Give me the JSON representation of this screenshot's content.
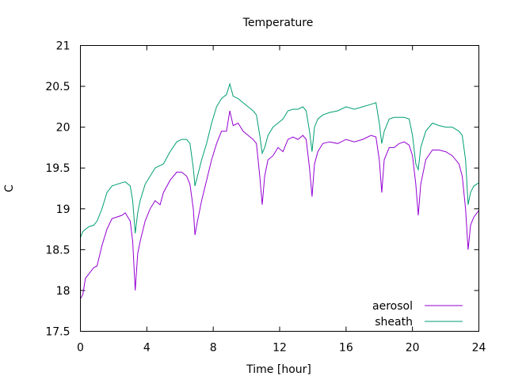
{
  "chart_data": {
    "type": "line",
    "title": "Temperature",
    "xlabel": "Time [hour]",
    "ylabel": "C",
    "xlim": [
      0,
      24
    ],
    "ylim": [
      17.5,
      21
    ],
    "xticks": [
      0,
      4,
      8,
      12,
      16,
      20,
      24
    ],
    "yticks": [
      17.5,
      18,
      18.5,
      19,
      19.5,
      20,
      20.5,
      21
    ],
    "xtick_labels": [
      "0",
      "4",
      "8",
      "12",
      "16",
      "20",
      "24"
    ],
    "ytick_labels": [
      "17.5",
      "18",
      "18.5",
      "19",
      "19.5",
      "20",
      "20.5",
      "21"
    ],
    "grid": false,
    "legend": "bottom-right",
    "series": [
      {
        "name": "aerosol",
        "color": "#9400d3",
        "x": [
          0,
          0.15,
          0.3,
          0.5,
          0.8,
          1.0,
          1.3,
          1.6,
          1.9,
          2.2,
          2.5,
          2.7,
          3.0,
          3.15,
          3.3,
          3.45,
          3.6,
          3.9,
          4.2,
          4.5,
          4.8,
          5.0,
          5.4,
          5.8,
          6.1,
          6.4,
          6.6,
          6.8,
          6.9,
          7.05,
          7.3,
          7.6,
          7.9,
          8.2,
          8.5,
          8.8,
          9.0,
          9.2,
          9.5,
          9.8,
          10.1,
          10.4,
          10.6,
          10.8,
          10.95,
          11.1,
          11.3,
          11.6,
          11.9,
          12.2,
          12.5,
          12.8,
          13.1,
          13.4,
          13.6,
          13.8,
          13.95,
          14.1,
          14.3,
          14.6,
          15.0,
          15.5,
          16.0,
          16.5,
          17.0,
          17.5,
          17.8,
          18.0,
          18.15,
          18.3,
          18.6,
          18.9,
          19.2,
          19.5,
          19.8,
          20.0,
          20.2,
          20.35,
          20.5,
          20.8,
          21.2,
          21.6,
          22.0,
          22.4,
          22.8,
          23.0,
          23.2,
          23.35,
          23.5,
          23.7,
          24.0
        ],
        "y": [
          17.9,
          17.95,
          18.15,
          18.2,
          18.28,
          18.3,
          18.55,
          18.75,
          18.88,
          18.9,
          18.92,
          18.95,
          18.85,
          18.6,
          18.0,
          18.45,
          18.6,
          18.85,
          19.0,
          19.1,
          19.05,
          19.2,
          19.35,
          19.45,
          19.45,
          19.4,
          19.3,
          19.0,
          18.68,
          18.85,
          19.1,
          19.35,
          19.6,
          19.8,
          19.95,
          19.95,
          20.2,
          20.02,
          20.05,
          19.95,
          19.9,
          19.85,
          19.8,
          19.4,
          19.05,
          19.4,
          19.6,
          19.65,
          19.75,
          19.7,
          19.85,
          19.88,
          19.85,
          19.9,
          19.85,
          19.5,
          19.15,
          19.55,
          19.7,
          19.8,
          19.82,
          19.8,
          19.85,
          19.82,
          19.85,
          19.9,
          19.88,
          19.6,
          19.2,
          19.6,
          19.75,
          19.75,
          19.8,
          19.82,
          19.78,
          19.65,
          19.3,
          18.92,
          19.3,
          19.6,
          19.72,
          19.72,
          19.7,
          19.65,
          19.55,
          19.4,
          19.0,
          18.5,
          18.8,
          18.9,
          18.98
        ]
      },
      {
        "name": "sheath",
        "color": "#009e73",
        "x": [
          0,
          0.15,
          0.3,
          0.5,
          0.8,
          1.0,
          1.3,
          1.6,
          1.9,
          2.2,
          2.5,
          2.7,
          3.0,
          3.15,
          3.3,
          3.45,
          3.6,
          3.9,
          4.2,
          4.5,
          4.8,
          5.0,
          5.4,
          5.8,
          6.1,
          6.4,
          6.6,
          6.8,
          6.9,
          7.05,
          7.3,
          7.6,
          7.9,
          8.2,
          8.5,
          8.8,
          9.0,
          9.2,
          9.5,
          9.8,
          10.1,
          10.4,
          10.6,
          10.8,
          10.95,
          11.1,
          11.3,
          11.6,
          11.9,
          12.2,
          12.5,
          12.8,
          13.1,
          13.4,
          13.6,
          13.8,
          13.95,
          14.1,
          14.3,
          14.6,
          15.0,
          15.5,
          16.0,
          16.5,
          17.0,
          17.5,
          17.8,
          18.0,
          18.15,
          18.3,
          18.6,
          18.9,
          19.2,
          19.5,
          19.8,
          20.0,
          20.2,
          20.35,
          20.5,
          20.8,
          21.2,
          21.6,
          22.0,
          22.4,
          22.8,
          23.0,
          23.2,
          23.35,
          23.5,
          23.7,
          24.0
        ],
        "y": [
          18.65,
          18.72,
          18.75,
          18.78,
          18.8,
          18.85,
          19.0,
          19.2,
          19.28,
          19.3,
          19.32,
          19.33,
          19.28,
          19.1,
          18.7,
          18.95,
          19.1,
          19.3,
          19.4,
          19.5,
          19.53,
          19.55,
          19.7,
          19.82,
          19.85,
          19.85,
          19.8,
          19.5,
          19.28,
          19.4,
          19.6,
          19.8,
          20.05,
          20.25,
          20.35,
          20.4,
          20.53,
          20.38,
          20.35,
          20.3,
          20.25,
          20.2,
          20.15,
          19.9,
          19.68,
          19.75,
          19.9,
          20.0,
          20.05,
          20.1,
          20.2,
          20.22,
          20.22,
          20.25,
          20.2,
          19.95,
          19.7,
          20.0,
          20.1,
          20.15,
          20.18,
          20.2,
          20.25,
          20.22,
          20.25,
          20.28,
          20.3,
          20.05,
          19.8,
          19.95,
          20.1,
          20.12,
          20.12,
          20.12,
          20.1,
          19.9,
          19.55,
          19.48,
          19.75,
          19.95,
          20.05,
          20.02,
          20.0,
          20.0,
          19.95,
          19.9,
          19.6,
          19.05,
          19.2,
          19.28,
          19.32
        ]
      }
    ]
  }
}
